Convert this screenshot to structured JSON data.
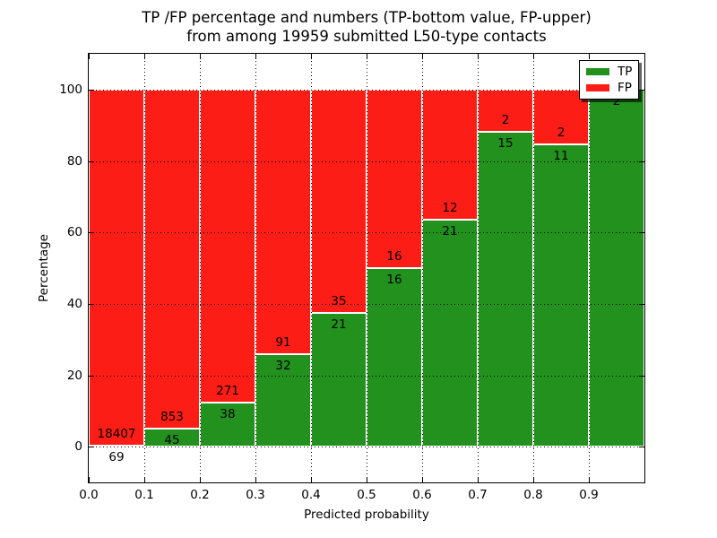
{
  "chart_data": {
    "type": "bar",
    "stacked": true,
    "orientation": "vertical",
    "title_line1": "TP /FP percentage and numbers (TP-bottom value, FP-upper)",
    "title_line2": "from among 19959 submitted L50-type contacts",
    "xlabel": "Predicted probability",
    "ylabel": "Percentage",
    "total_contacts": 19959,
    "xlim": [
      0,
      1.0
    ],
    "ylim": [
      -10,
      110
    ],
    "x_tick_values": [
      0.0,
      0.1,
      0.2,
      0.3,
      0.4,
      0.5,
      0.6,
      0.7,
      0.8,
      0.9
    ],
    "x_tick_labels": [
      "0.0",
      "0.1",
      "0.2",
      "0.3",
      "0.4",
      "0.5",
      "0.6",
      "0.7",
      "0.8",
      "0.9"
    ],
    "y_tick_values": [
      0,
      20,
      40,
      60,
      80,
      100
    ],
    "y_tick_labels": [
      "0",
      "20",
      "40",
      "60",
      "80",
      "100"
    ],
    "grid": {
      "style": "dotted",
      "axes": "both",
      "above_bars": true
    },
    "categories": [
      "0.0-0.1",
      "0.1-0.2",
      "0.2-0.3",
      "0.3-0.4",
      "0.4-0.5",
      "0.5-0.6",
      "0.6-0.7",
      "0.7-0.8",
      "0.8-0.9",
      "0.9-1.0"
    ],
    "series": [
      {
        "name": "TP",
        "color": "#22911d",
        "counts": [
          69,
          45,
          38,
          32,
          21,
          16,
          21,
          15,
          11,
          2
        ],
        "percent": [
          0.37,
          5.01,
          12.3,
          26.02,
          37.5,
          50.0,
          63.64,
          88.24,
          84.62,
          100.0
        ]
      },
      {
        "name": "FP",
        "color": "#fc1d16",
        "counts": [
          18407,
          853,
          271,
          91,
          35,
          16,
          12,
          2,
          2,
          0
        ],
        "percent": [
          99.63,
          94.99,
          87.7,
          73.98,
          62.5,
          50.0,
          36.36,
          11.76,
          15.38,
          0.0
        ]
      }
    ],
    "bar_labels": {
      "tp": [
        "69",
        "45",
        "38",
        "32",
        "21",
        "16",
        "21",
        "15",
        "11",
        "2"
      ],
      "fp": [
        "18407",
        "853",
        "271",
        "91",
        "35",
        "16",
        "12",
        "2",
        "2",
        null
      ]
    },
    "legend": {
      "position": "upper right",
      "entries": [
        {
          "label": "TP",
          "color": "#22911d"
        },
        {
          "label": "FP",
          "color": "#fc1d16"
        }
      ]
    }
  }
}
